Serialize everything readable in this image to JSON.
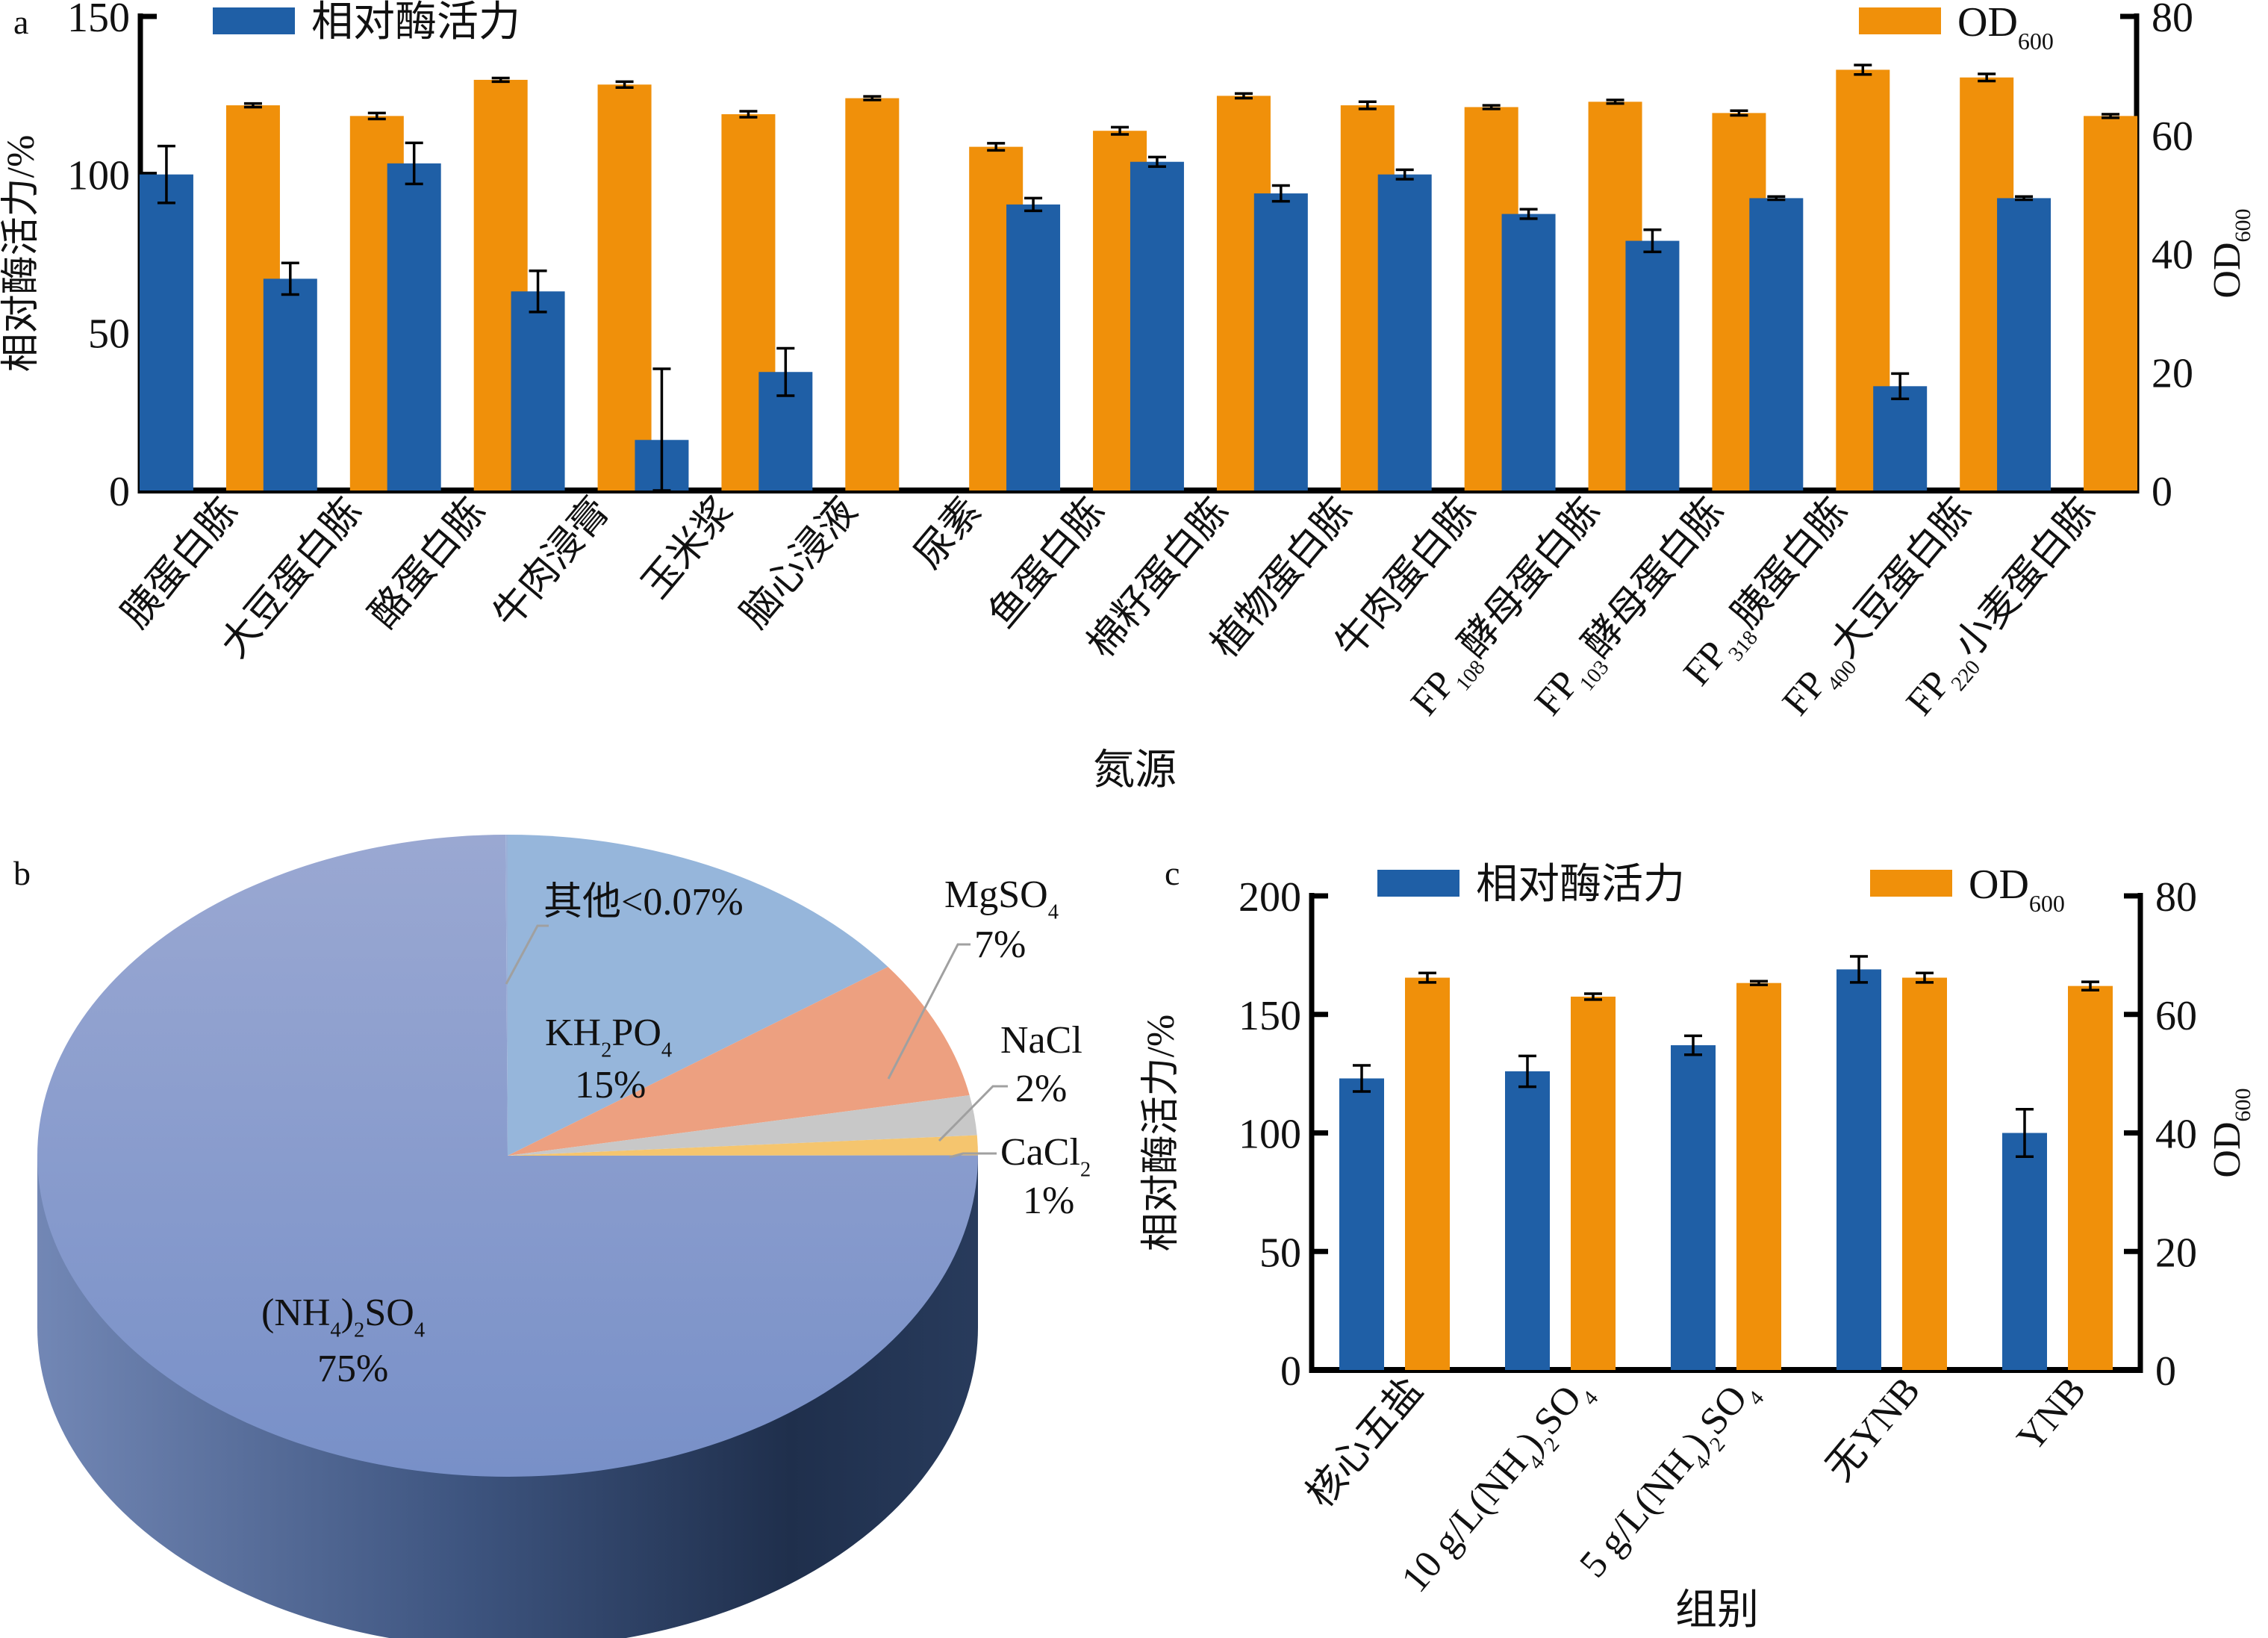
{
  "colors": {
    "enzyme": "#1f5fa6",
    "od": "#f0900a",
    "axis": "#000000"
  },
  "chart_data": [
    {
      "panel": "a",
      "type": "bar",
      "title": "",
      "xlabel": "氮源",
      "ylabel": "相对酶活力/%",
      "y2label_main": "OD",
      "y2label_sub": "600",
      "ylim": [
        0,
        150
      ],
      "y2lim": [
        0,
        80
      ],
      "yticks": [
        0,
        50,
        100,
        150
      ],
      "y2ticks": [
        0,
        20,
        40,
        60,
        80
      ],
      "grid": false,
      "legend_position": "top",
      "categories": [
        "胰蛋白胨",
        "大豆蛋白胨",
        "酪蛋白胨",
        "牛肉浸膏",
        "玉米浆",
        "脑心浸液",
        "尿素",
        "鱼蛋白胨",
        "棉籽蛋白胨",
        "植物蛋白胨",
        "牛肉蛋白胨",
        "FP108酵母蛋白胨",
        "FP103酵母蛋白胨",
        "FP318胰蛋白胨",
        "FP400大豆蛋白胨",
        "FP220小麦蛋白胨"
      ],
      "series": [
        {
          "name": "相对酶活力",
          "axis": "left",
          "values": [
            100,
            67,
            103.5,
            63,
            16,
            37.5,
            0,
            90.5,
            104,
            94,
            100,
            87.5,
            79,
            92.5,
            33,
            92.5
          ],
          "errors": [
            9,
            5,
            6.5,
            6.5,
            22.5,
            7.5,
            0,
            2,
            1.5,
            2.5,
            1.5,
            1.5,
            3.5,
            0.5,
            4,
            0.5
          ]
        },
        {
          "name": "OD",
          "name_sub": "600",
          "axis": "right",
          "values": [
            65,
            63.2,
            69.3,
            68.5,
            63.5,
            66.2,
            58,
            60.7,
            66.6,
            65,
            64.7,
            65.6,
            63.7,
            71,
            69.7,
            63.2
          ],
          "errors": [
            0.3,
            0.5,
            0.3,
            0.5,
            0.5,
            0.3,
            0.6,
            0.6,
            0.4,
            0.6,
            0.3,
            0.3,
            0.4,
            0.8,
            0.6,
            0.3
          ]
        }
      ]
    },
    {
      "panel": "b",
      "type": "pie",
      "title": "",
      "slices": [
        {
          "label": "KH2PO4",
          "label_parts": [
            "KH",
            "2",
            "PO",
            "4"
          ],
          "value": 15,
          "pct_label": "15%",
          "color": "#96b6db"
        },
        {
          "label": "MgSO4",
          "label_parts": [
            "MgSO",
            "4"
          ],
          "value": 7,
          "pct_label": "7%",
          "color": "#eda080"
        },
        {
          "label": "NaCl",
          "label_parts": [
            "NaCl"
          ],
          "value": 2,
          "pct_label": "2%",
          "color": "#c8c8c8"
        },
        {
          "label": "CaCl2",
          "label_parts": [
            "CaCl",
            "2"
          ],
          "value": 1,
          "pct_label": "1%",
          "color": "#f5c56e"
        },
        {
          "label": "(NH4)2SO4",
          "label_parts": [
            "(NH",
            "4",
            ")",
            "2",
            "SO",
            "4"
          ],
          "value": 75,
          "pct_label": "75%",
          "color": "#8a9fd0"
        },
        {
          "label": "其他",
          "value": 0.07,
          "pct_label": "其他<0.07%",
          "color": "#9ab0d8"
        }
      ]
    },
    {
      "panel": "c",
      "type": "bar",
      "title": "",
      "xlabel": "组别",
      "ylabel": "相对酶活力/%",
      "y2label_main": "OD",
      "y2label_sub": "600",
      "ylim": [
        0,
        200
      ],
      "y2lim": [
        0,
        80
      ],
      "yticks": [
        0,
        50,
        100,
        150,
        200
      ],
      "y2ticks": [
        0,
        20,
        40,
        60,
        80
      ],
      "grid": false,
      "legend_position": "top",
      "categories": [
        "核心五盐",
        "10 g/L(NH4)2SO4",
        "5 g/L(NH4)2SO4",
        "无YNB",
        "YNB"
      ],
      "series": [
        {
          "name": "相对酶活力",
          "axis": "left",
          "values": [
            123,
            126,
            137,
            169,
            100
          ],
          "errors": [
            5.5,
            6.5,
            4,
            5.5,
            10
          ]
        },
        {
          "name": "OD",
          "name_sub": "600",
          "axis": "right",
          "values": [
            66.2,
            63,
            65.3,
            66.2,
            64.8
          ],
          "errors": [
            0.8,
            0.5,
            0.3,
            0.8,
            0.7
          ]
        }
      ]
    }
  ],
  "panel_labels": {
    "a": "a",
    "b": "b",
    "c": "c"
  },
  "legend": {
    "enzyme": "相对酶活力",
    "od_main": "OD",
    "od_sub": "600"
  }
}
